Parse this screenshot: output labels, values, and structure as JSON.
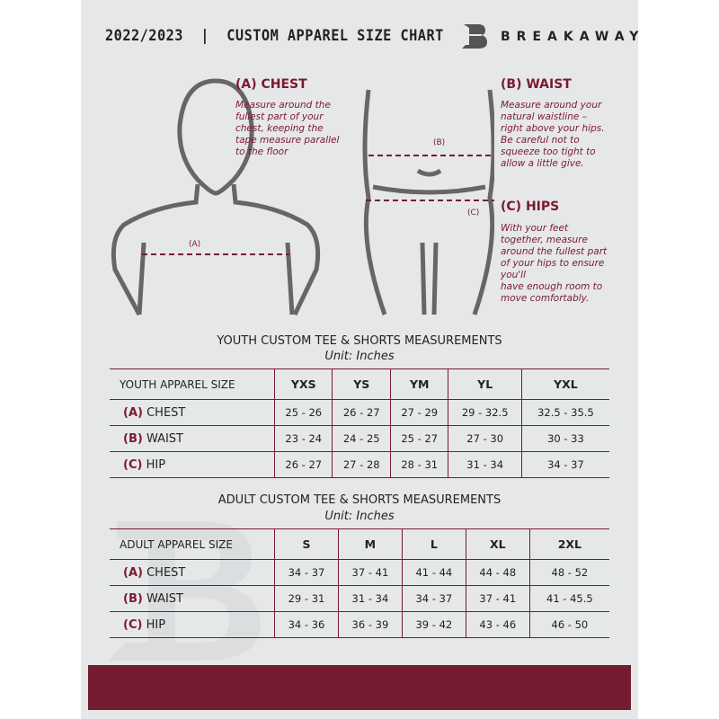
{
  "header": {
    "title": "2022/2023  |  CUSTOM APPAREL SIZE CHART",
    "brand": "BREAKAWAY"
  },
  "chest": {
    "heading": "(A) CHEST",
    "text": "Measure around the\nfullest part of your\nchest, keeping the\ntape measure parallel\nto the floor",
    "marker": "(A)"
  },
  "waist": {
    "heading": "(B) WAIST",
    "text": "Measure around your\nnatural waistline –\nright above your hips.\nBe careful not to\nsqueeze too tight to\nallow a little give.",
    "marker": "(B)"
  },
  "hips": {
    "heading": "(C) HIPS",
    "text": "With your feet\ntogether, measure\naround the fullest part\nof your hips to ensure\nyou'll\nhave enough room to\nmove comfortably.",
    "marker": "(C)"
  },
  "youth": {
    "title": "YOUTH CUSTOM TEE & SHORTS MEASUREMENTS",
    "unit": "Unit: Inches",
    "size_label": "YOUTH APPAREL SIZE",
    "sizes": [
      "YXS",
      "YS",
      "YM",
      "YL",
      "YXL"
    ],
    "rows": [
      {
        "code": "(A)",
        "name": "CHEST",
        "values": [
          "25 - 26",
          "26 - 27",
          "27 - 29",
          "29 - 32.5",
          "32.5 - 35.5"
        ]
      },
      {
        "code": "(B)",
        "name": "WAIST",
        "values": [
          "23 - 24",
          "24 - 25",
          "25 - 27",
          "27 - 30",
          "30 - 33"
        ]
      },
      {
        "code": "(C)",
        "name": "HIP",
        "values": [
          "26 - 27",
          "27 - 28",
          "28 - 31",
          "31 - 34",
          "34 - 37"
        ]
      }
    ]
  },
  "adult": {
    "title": "ADULT CUSTOM TEE & SHORTS MEASUREMENTS",
    "unit": "Unit: Inches",
    "size_label": "ADULT APPAREL SIZE",
    "sizes": [
      "S",
      "M",
      "L",
      "XL",
      "2XL"
    ],
    "rows": [
      {
        "code": "(A)",
        "name": "CHEST",
        "values": [
          "34 - 37",
          "37 - 41",
          "41 - 44",
          "44 - 48",
          "48 - 52"
        ]
      },
      {
        "code": "(B)",
        "name": "WAIST",
        "values": [
          "29 - 31",
          "31 - 34",
          "34 - 37",
          "37 - 41",
          "41 - 45.5"
        ]
      },
      {
        "code": "(C)",
        "name": "HIP",
        "values": [
          "34 - 36",
          "36 - 39",
          "39 - 42",
          "43 - 46",
          "46 - 50"
        ]
      }
    ]
  },
  "colors": {
    "accent": "#741b30",
    "background": "#e6e7e8"
  }
}
